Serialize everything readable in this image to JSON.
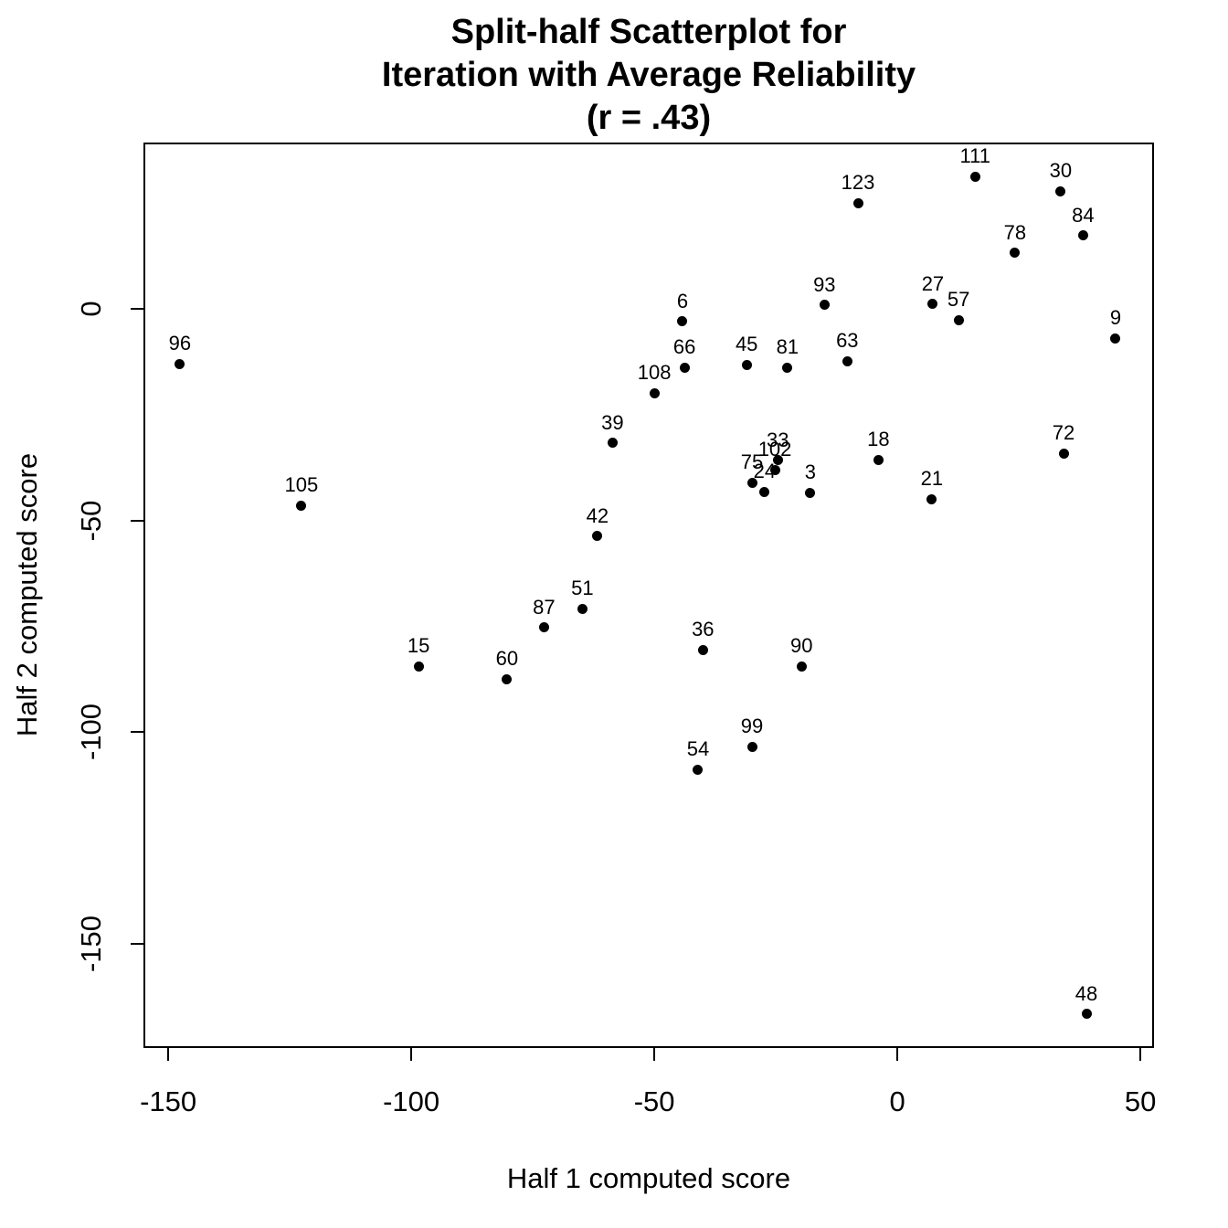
{
  "chart_data": {
    "type": "scatter",
    "title": "Split-half Scatterplot for\nIteration with Average Reliability\n(r = .43)",
    "title_lines": [
      "Split-half Scatterplot for",
      "Iteration with Average Reliability",
      "(r = .43)"
    ],
    "correlation_label": "r = .43",
    "xlabel": "Half 1 computed score",
    "ylabel": "Half 2 computed score",
    "x_ticks": [
      -150,
      -100,
      -50,
      0,
      50
    ],
    "y_ticks": [
      0,
      -50,
      -100,
      -150
    ],
    "x_range": [
      -155.1,
      52.8
    ],
    "y_range": [
      -174.6,
      39.3
    ],
    "grid": false,
    "legend": "none",
    "point_color": "#000000",
    "background_color": "#ffffff",
    "points": [
      {
        "label": "3",
        "x": -17.9,
        "y": -43.4
      },
      {
        "label": "6",
        "x": -44.2,
        "y": -3.0
      },
      {
        "label": "9",
        "x": 44.9,
        "y": -6.9
      },
      {
        "label": "15",
        "x": -98.5,
        "y": -84.4
      },
      {
        "label": "18",
        "x": -3.9,
        "y": -35.6
      },
      {
        "label": "21",
        "x": 7.1,
        "y": -44.9
      },
      {
        "label": "24",
        "x": -27.3,
        "y": -43.2
      },
      {
        "label": "27",
        "x": 7.3,
        "y": 1.1
      },
      {
        "label": "30",
        "x": 33.6,
        "y": 27.8
      },
      {
        "label": "33",
        "x": -24.6,
        "y": -35.8
      },
      {
        "label": "36",
        "x": -40.0,
        "y": -80.5
      },
      {
        "label": "39",
        "x": -58.6,
        "y": -31.7
      },
      {
        "label": "42",
        "x": -61.7,
        "y": -53.7
      },
      {
        "label": "45",
        "x": -31.0,
        "y": -13.2
      },
      {
        "label": "48",
        "x": 38.9,
        "y": -166.6
      },
      {
        "label": "51",
        "x": -64.8,
        "y": -70.8
      },
      {
        "label": "54",
        "x": -41.0,
        "y": -108.8
      },
      {
        "label": "57",
        "x": 12.6,
        "y": -2.6
      },
      {
        "label": "60",
        "x": -80.3,
        "y": -87.4
      },
      {
        "label": "63",
        "x": -10.3,
        "y": -12.3
      },
      {
        "label": "66",
        "x": -43.8,
        "y": -13.8
      },
      {
        "label": "72",
        "x": 34.2,
        "y": -34.1
      },
      {
        "label": "75",
        "x": -29.9,
        "y": -41.0
      },
      {
        "label": "78",
        "x": 24.2,
        "y": 13.2
      },
      {
        "label": "81",
        "x": -22.6,
        "y": -13.8
      },
      {
        "label": "84",
        "x": 38.2,
        "y": 17.3
      },
      {
        "label": "87",
        "x": -72.7,
        "y": -75.3
      },
      {
        "label": "90",
        "x": -19.7,
        "y": -84.4
      },
      {
        "label": "93",
        "x": -15.0,
        "y": 0.9
      },
      {
        "label": "96",
        "x": -147.6,
        "y": -13.0
      },
      {
        "label": "99",
        "x": -29.9,
        "y": -103.4
      },
      {
        "label": "102",
        "x": -25.2,
        "y": -38.0
      },
      {
        "label": "105",
        "x": -122.6,
        "y": -46.4
      },
      {
        "label": "108",
        "x": -50.0,
        "y": -19.9
      },
      {
        "label": "111",
        "x": 16.0,
        "y": 31.3
      },
      {
        "label": "123",
        "x": -8.1,
        "y": 25.0
      }
    ]
  },
  "colors": {
    "foreground": "#000000",
    "background": "#ffffff"
  }
}
